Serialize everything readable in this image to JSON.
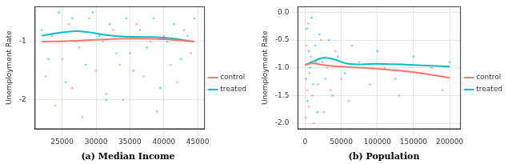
{
  "chart_data": [
    {
      "type": "scatter",
      "title": "(a) Median Income",
      "y_label": "Unemployment Rate",
      "xlim": [
        21000,
        46000
      ],
      "xticks": [
        25000,
        30000,
        35000,
        40000,
        45000
      ],
      "ylim": [
        -2.5,
        -0.4
      ],
      "yticks": [
        -2,
        -1
      ],
      "grid": true,
      "legend": "right",
      "series": [
        {
          "name": "control",
          "color": "#F8766D",
          "x": [
            22500,
            23500,
            24000,
            25000,
            26000,
            26500,
            27500,
            28000,
            29000,
            30000,
            31000,
            31500,
            32500,
            33500,
            34000,
            35000,
            36000,
            37000,
            38000,
            39000,
            40000,
            41000,
            42000,
            43000,
            44000
          ],
          "values": [
            -1.6,
            -0.9,
            -2.1,
            -1.3,
            -0.7,
            -1.8,
            -1.1,
            -2.3,
            -0.6,
            -1.5,
            -1.0,
            -1.9,
            -0.8,
            -1.4,
            -2.0,
            -1.2,
            -0.7,
            -1.6,
            -1.0,
            -2.2,
            -0.9,
            -1.4,
            -1.7,
            -0.8,
            -1.2
          ],
          "trend": {
            "x": [
              22000,
              26000,
              30000,
              35000,
              40000,
              44500
            ],
            "values": [
              -1.0,
              -0.99,
              -0.97,
              -0.95,
              -0.96,
              -1.0
            ]
          }
        },
        {
          "name": "treated",
          "color": "#00BFC4",
          "x": [
            22000,
            23000,
            24500,
            25500,
            26500,
            27000,
            28500,
            29500,
            30500,
            31500,
            32000,
            33000,
            34500,
            35500,
            36500,
            37500,
            38500,
            39500,
            40500,
            41500,
            42500,
            43500,
            44500
          ],
          "values": [
            -0.8,
            -1.3,
            -0.5,
            -1.7,
            -0.6,
            -1.0,
            -1.4,
            -0.5,
            -0.9,
            -2.0,
            -0.7,
            -1.2,
            -0.6,
            -1.5,
            -0.8,
            -1.1,
            -0.6,
            -1.8,
            -1.0,
            -0.7,
            -1.3,
            -0.9,
            -0.6
          ],
          "trend": {
            "x": [
              22000,
              24500,
              27000,
              29000,
              31000,
              33500,
              36000,
              40000,
              44500
            ],
            "values": [
              -0.9,
              -0.85,
              -0.82,
              -0.84,
              -0.88,
              -0.91,
              -0.92,
              -0.93,
              -1.0
            ]
          }
        }
      ]
    },
    {
      "type": "scatter",
      "title": "(b) Population",
      "y_label": "Unemployment Rate",
      "xlim": [
        -10000,
        215000
      ],
      "xticks": [
        0,
        50000,
        100000,
        150000,
        200000
      ],
      "ylim": [
        -2.1,
        0.1
      ],
      "yticks": [
        {
          "value": -2,
          "label": "-2.0"
        },
        -1.5,
        {
          "value": -1,
          "label": "-1.0"
        },
        -0.5,
        {
          "value": 0,
          "label": "0.0"
        }
      ],
      "grid": true,
      "legend": "right",
      "series": [
        {
          "name": "control",
          "color": "#F8766D",
          "x": [
            1000,
            2000,
            3000,
            4000,
            5000,
            6000,
            8000,
            10000,
            12000,
            15000,
            18000,
            22000,
            26000,
            30000,
            35000,
            42000,
            50000,
            60000,
            75000,
            90000,
            110000,
            130000,
            160000,
            190000
          ],
          "values": [
            -1.9,
            -0.6,
            -1.4,
            -0.2,
            -1.7,
            -1.1,
            -0.8,
            -1.5,
            -2.0,
            -0.9,
            -1.3,
            -0.5,
            -1.8,
            -1.0,
            -1.4,
            -0.7,
            -1.2,
            -1.6,
            -0.9,
            -1.3,
            -1.0,
            -1.5,
            -1.1,
            -1.4
          ],
          "trend": {
            "x": [
              0,
              10000,
              25000,
              50000,
              100000,
              150000,
              200000
            ],
            "values": [
              -0.95,
              -0.92,
              -0.95,
              -0.98,
              -1.02,
              -1.08,
              -1.18
            ]
          }
        },
        {
          "name": "treated",
          "color": "#00BFC4",
          "x": [
            1500,
            2500,
            3500,
            5000,
            7000,
            9000,
            11000,
            14000,
            17000,
            20000,
            24000,
            28000,
            33000,
            38000,
            45000,
            55000,
            65000,
            80000,
            100000,
            125000,
            150000,
            175000,
            200000
          ],
          "values": [
            -1.2,
            -0.3,
            -1.6,
            -0.7,
            -1.0,
            -0.1,
            -1.3,
            -0.6,
            -1.8,
            -0.4,
            -0.9,
            -1.2,
            -0.5,
            -1.5,
            -0.8,
            -1.1,
            -0.6,
            -1.0,
            -0.7,
            -1.2,
            -0.8,
            -1.0,
            -0.9
          ],
          "trend": {
            "x": [
              0,
              12000,
              25000,
              40000,
              60000,
              100000,
              150000,
              200000
            ],
            "values": [
              -0.95,
              -0.88,
              -0.82,
              -0.85,
              -0.93,
              -0.93,
              -0.95,
              -0.98
            ]
          }
        }
      ]
    }
  ]
}
